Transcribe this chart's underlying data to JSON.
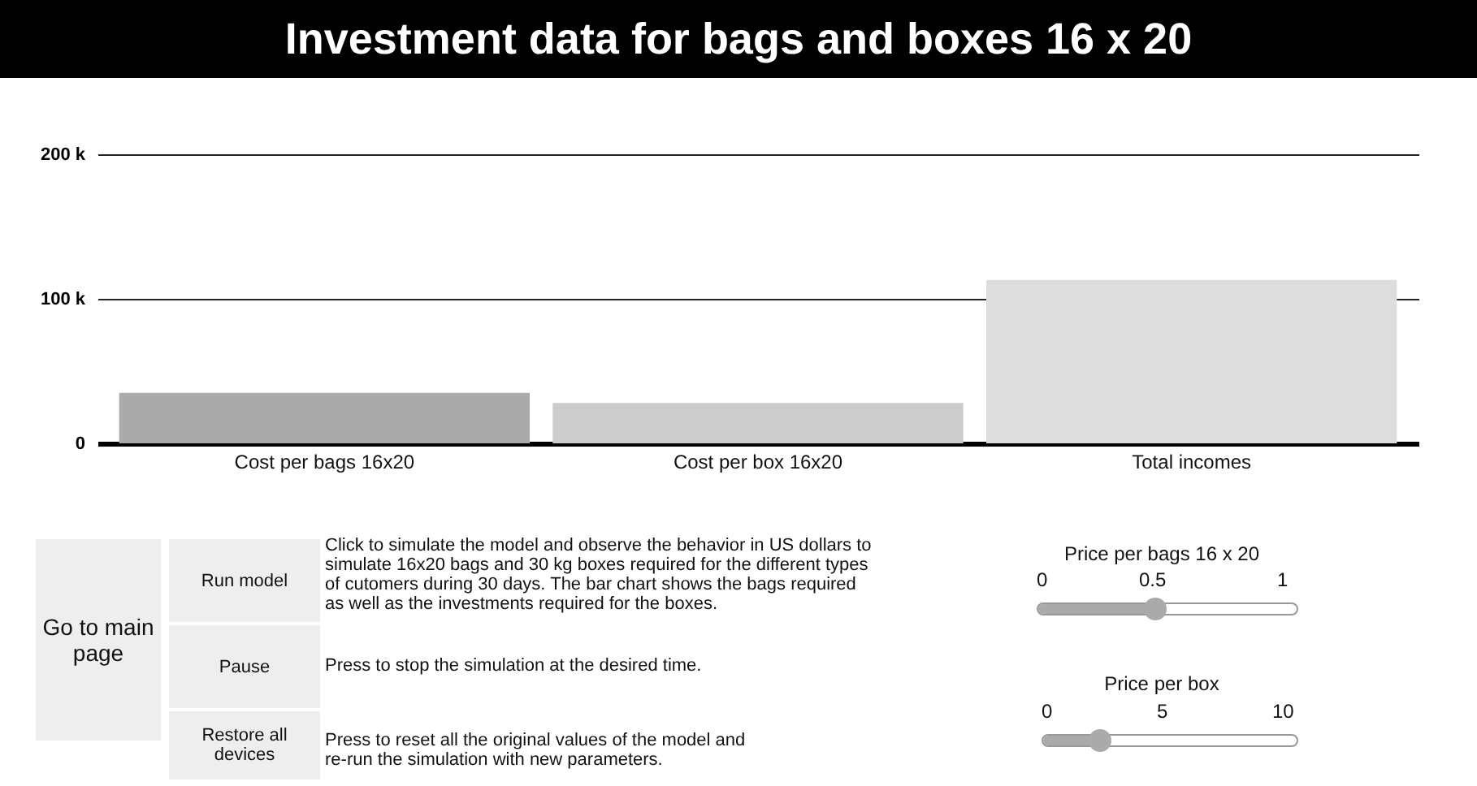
{
  "chart_data": [
    {
      "type": "bar",
      "title": "Investment data for bags and boxes 16 x 20",
      "categories": [
        "Cost per bags 16x20",
        "Cost per box 16x20",
        "Total incomes"
      ],
      "values": [
        35000,
        28000,
        113000
      ],
      "colors": [
        "#aaaaaa",
        "#cccccc",
        "#dddddd"
      ],
      "ylim": [
        0,
        200000
      ],
      "yticks": [
        {
          "value": 0,
          "label": "0"
        },
        {
          "value": 100000,
          "label": "100 k"
        },
        {
          "value": 200000,
          "label": "200 k"
        }
      ],
      "grid": true
    },
    {
      "type": "other",
      "annotations": [
        "Go to main page",
        "Run model",
        "Click to simulate the model and observe the behavior in US dollars to simulate 16x20 bags and 30 kg boxes required for the different types of cutomers during 30 days.  The bar chart shows the bags required as well as the investments required for the boxes.",
        "Pause",
        "Press to stop the simulation at the desired time.",
        "Restore all devices",
        "Press to reset all the original values of the model and re-run the simulation with new parameters.",
        "Price per bags 16 x 20",
        "0",
        "0.5",
        "1",
        "Price per box",
        "0",
        "5",
        "10"
      ]
    }
  ]
}
